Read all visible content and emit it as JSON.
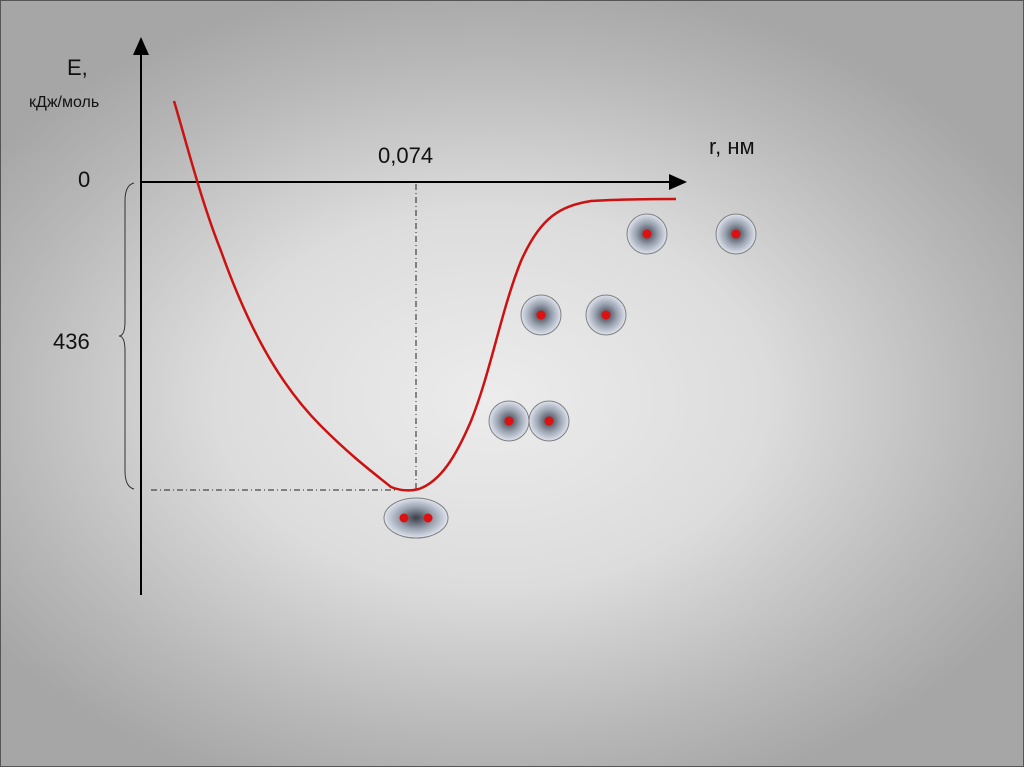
{
  "y_axis": {
    "label": "E,",
    "unit": "кДж/моль",
    "zero_label": "0",
    "depth_label": "436"
  },
  "x_axis": {
    "label": "r, нм",
    "minimum_label": "0,074"
  },
  "colors": {
    "curve": "#cc1111",
    "nucleus": "#dd1111",
    "axis": "#000000"
  }
}
